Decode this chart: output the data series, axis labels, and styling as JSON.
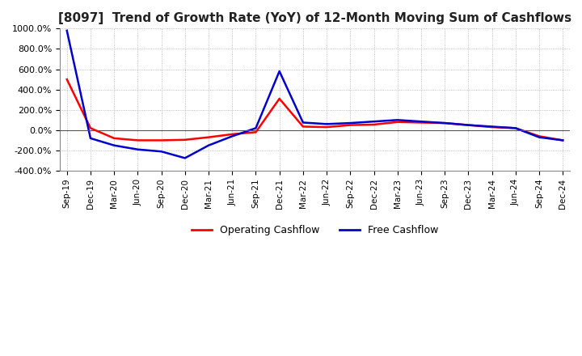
{
  "title": "[8097]  Trend of Growth Rate (YoY) of 12-Month Moving Sum of Cashflows",
  "title_fontsize": 11,
  "ylim": [
    -400,
    1000
  ],
  "yticks": [
    -400,
    -200,
    0,
    200,
    400,
    600,
    800,
    1000
  ],
  "background_color": "#ffffff",
  "grid_color": "#aaaaaa",
  "operating_color": "#ff0000",
  "free_color": "#0000cc",
  "x_labels": [
    "Sep-19",
    "Dec-19",
    "Mar-20",
    "Jun-20",
    "Sep-20",
    "Dec-20",
    "Mar-21",
    "Jun-21",
    "Sep-21",
    "Dec-21",
    "Mar-22",
    "Jun-22",
    "Sep-22",
    "Dec-22",
    "Mar-23",
    "Jun-23",
    "Sep-23",
    "Dec-23",
    "Mar-24",
    "Jun-24",
    "Sep-24",
    "Dec-24"
  ],
  "operating_cashflow": [
    500,
    20,
    -80,
    -100,
    -100,
    -95,
    -70,
    -40,
    -20,
    310,
    35,
    30,
    50,
    55,
    80,
    75,
    70,
    50,
    30,
    20,
    -60,
    -100
  ],
  "free_cashflow": [
    980,
    -80,
    -150,
    -190,
    -210,
    -275,
    -150,
    -60,
    20,
    580,
    75,
    60,
    70,
    85,
    100,
    85,
    70,
    50,
    35,
    20,
    -70,
    -100
  ]
}
